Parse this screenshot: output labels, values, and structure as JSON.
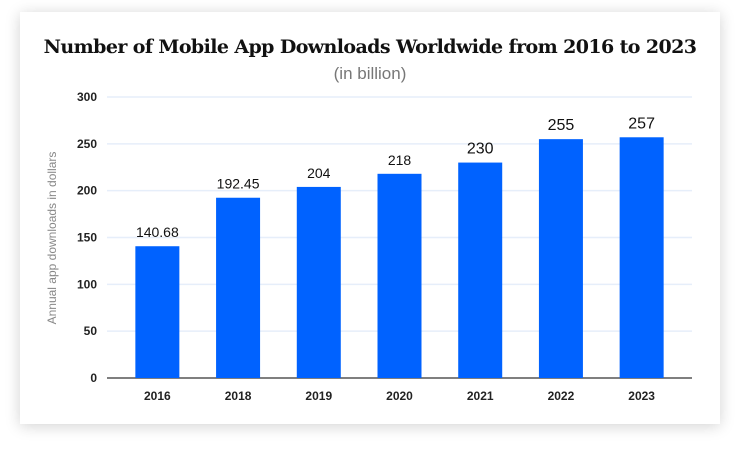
{
  "chart_data": {
    "type": "bar",
    "title": "Number of Mobile App Downloads Worldwide from 2016 to 2023",
    "subtitle": "(in billion)",
    "xlabel": "",
    "ylabel": "Annual app downloads in dollars",
    "categories": [
      "2016",
      "2018",
      "2019",
      "2020",
      "2021",
      "2022",
      "2023"
    ],
    "values": [
      140.68,
      192.45,
      204,
      218,
      230,
      255,
      257
    ],
    "data_labels": [
      "140.68",
      "192.45",
      "204",
      "218",
      "230",
      "255",
      "257"
    ],
    "ylim": [
      0,
      300
    ],
    "yticks": [
      0,
      50,
      100,
      150,
      200,
      250,
      300
    ],
    "grid": true,
    "bar_color": "#0062ff"
  }
}
